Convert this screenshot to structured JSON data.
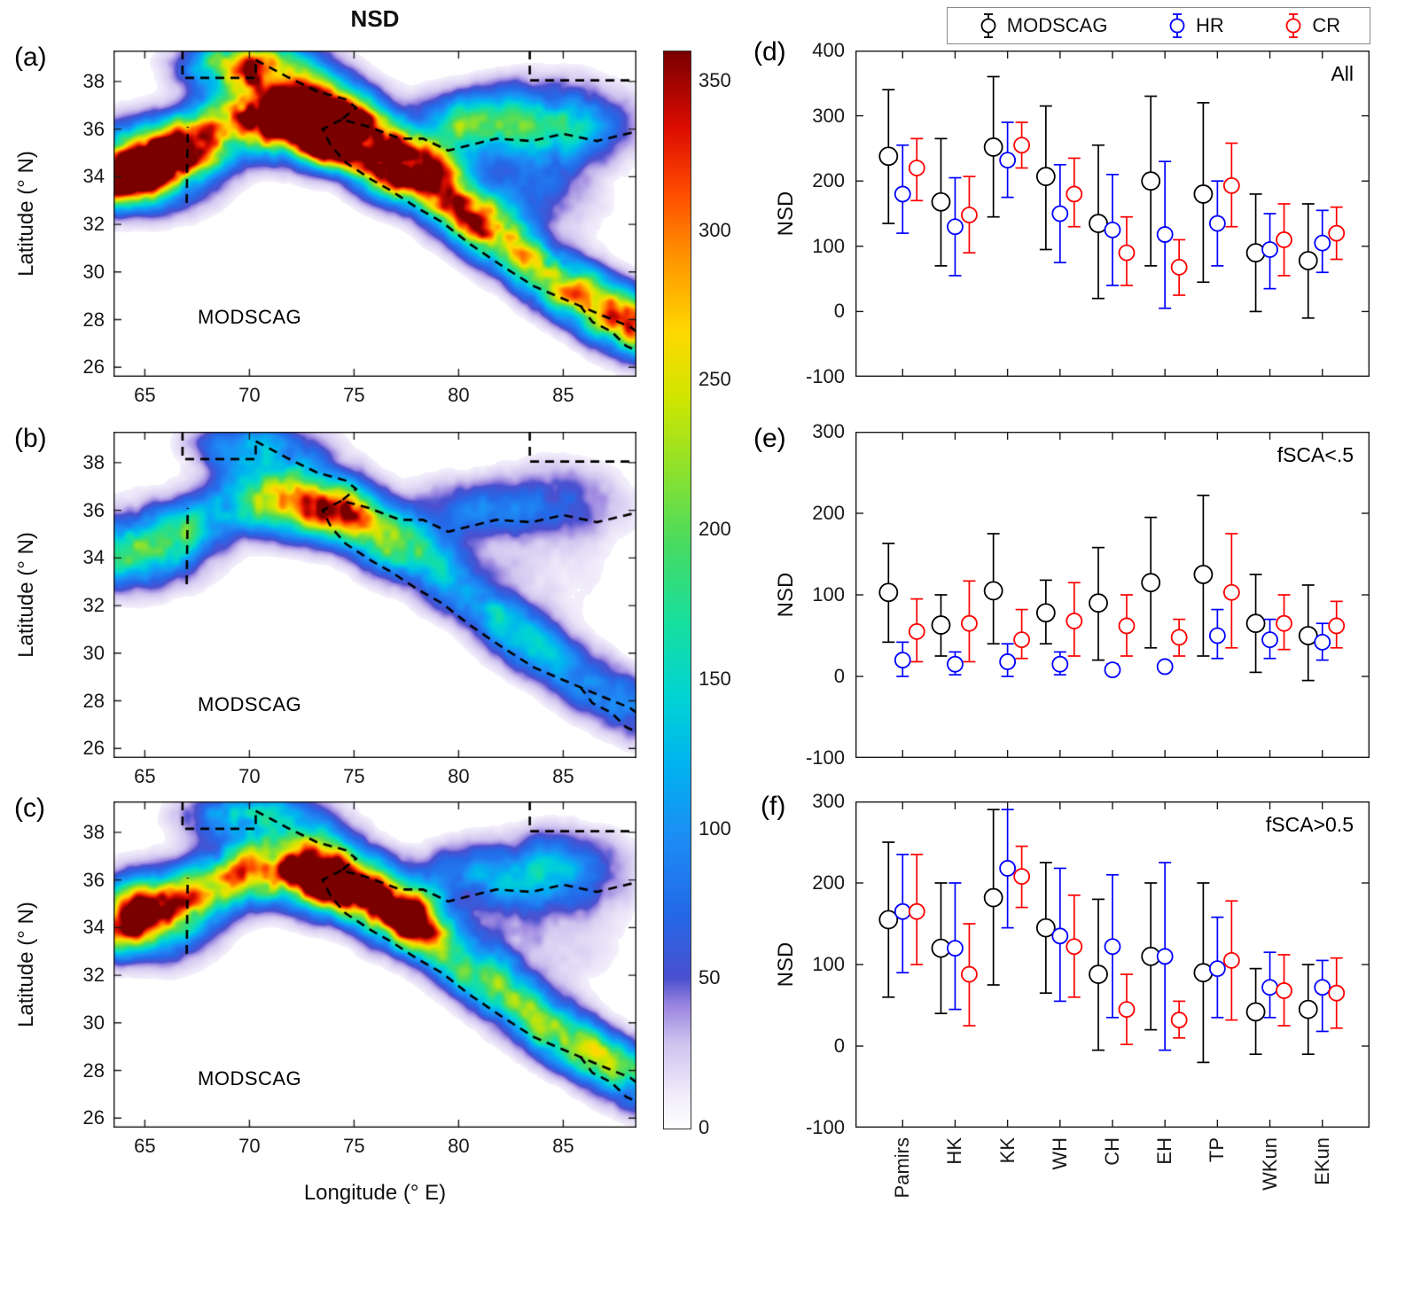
{
  "figure": {
    "title": "NSD",
    "maps": {
      "xlabel": "Longitude (° E)",
      "ylabel": "Latitude (° N)",
      "xlim": [
        63.5,
        88.5
      ],
      "ylim": [
        25.6,
        39.3
      ],
      "xticks": [
        65,
        70,
        75,
        80,
        85
      ],
      "yticks": [
        26,
        28,
        30,
        32,
        34,
        36,
        38
      ],
      "panels": [
        {
          "label": "(a)",
          "annotation": "MODSCAG",
          "intensity": 1.0,
          "seed": 11
        },
        {
          "label": "(b)",
          "annotation": "MODSCAG",
          "intensity": 0.4,
          "seed": 23
        },
        {
          "label": "(c)",
          "annotation": "MODSCAG",
          "intensity": 0.68,
          "seed": 37
        }
      ],
      "boundaries": [
        [
          [
            66.8,
            39.3
          ],
          [
            66.8,
            38.15
          ],
          [
            70.3,
            38.15
          ],
          [
            70.3,
            38.9
          ]
        ],
        [
          [
            83.4,
            39.3
          ],
          [
            83.4,
            38.05
          ],
          [
            88.5,
            38.05
          ]
        ],
        [
          [
            67.0,
            32.9
          ],
          [
            67.05,
            36.1
          ]
        ],
        [
          [
            70.3,
            38.9
          ],
          [
            71.8,
            38.2
          ],
          [
            73.2,
            37.6
          ],
          [
            74.6,
            37.25
          ],
          [
            75.1,
            36.9
          ],
          [
            74.4,
            36.4
          ],
          [
            75.7,
            36.1
          ],
          [
            77.2,
            35.6
          ],
          [
            78.3,
            35.6
          ],
          [
            79.5,
            35.1
          ],
          [
            80.4,
            35.3
          ],
          [
            81.8,
            35.6
          ],
          [
            83.5,
            35.5
          ],
          [
            85.0,
            35.8
          ],
          [
            86.6,
            35.5
          ],
          [
            88.5,
            35.9
          ]
        ],
        [
          [
            74.4,
            36.4
          ],
          [
            73.5,
            36.0
          ],
          [
            73.9,
            35.3
          ],
          [
            74.6,
            34.6
          ],
          [
            75.8,
            33.9
          ],
          [
            76.8,
            33.4
          ],
          [
            78.0,
            32.7
          ],
          [
            79.2,
            32.1
          ],
          [
            80.5,
            31.2
          ],
          [
            82.0,
            30.3
          ],
          [
            83.6,
            29.4
          ],
          [
            85.2,
            28.8
          ],
          [
            86.8,
            28.2
          ],
          [
            88.2,
            27.7
          ],
          [
            88.5,
            27.5
          ]
        ],
        [
          [
            85.8,
            28.6
          ],
          [
            86.4,
            27.9
          ],
          [
            87.3,
            27.5
          ],
          [
            88.0,
            26.9
          ],
          [
            88.5,
            26.7
          ]
        ]
      ]
    },
    "colorbar": {
      "min": 0,
      "max": 360,
      "ticks": [
        0,
        50,
        100,
        150,
        200,
        250,
        300,
        350
      ],
      "stops": [
        {
          "t": 0.0,
          "c": "#ffffff"
        },
        {
          "t": 0.03,
          "c": "#f2eefb"
        },
        {
          "t": 0.08,
          "c": "#cfc3ef"
        },
        {
          "t": 0.115,
          "c": "#9a86e0"
        },
        {
          "t": 0.14,
          "c": "#4b50cf"
        },
        {
          "t": 0.2,
          "c": "#2469e8"
        },
        {
          "t": 0.27,
          "c": "#1d8df5"
        },
        {
          "t": 0.34,
          "c": "#00b4f0"
        },
        {
          "t": 0.4,
          "c": "#00d4d4"
        },
        {
          "t": 0.47,
          "c": "#18e0a0"
        },
        {
          "t": 0.54,
          "c": "#46db64"
        },
        {
          "t": 0.61,
          "c": "#8ce22e"
        },
        {
          "t": 0.68,
          "c": "#d2e600"
        },
        {
          "t": 0.74,
          "c": "#ffd900"
        },
        {
          "t": 0.81,
          "c": "#ff9400"
        },
        {
          "t": 0.87,
          "c": "#ff4c00"
        },
        {
          "t": 0.93,
          "c": "#dd0c00"
        },
        {
          "t": 1.0,
          "c": "#7a0000"
        }
      ]
    },
    "legend": {
      "items": [
        {
          "label": "MODSCAG",
          "color": "#000000"
        },
        {
          "label": "HR",
          "color": "#0000ff"
        },
        {
          "label": "CR",
          "color": "#ff0000"
        }
      ]
    }
  },
  "chart_data": [
    {
      "type": "errorbar",
      "panel": "(d)",
      "annotation": "All",
      "ylabel": "NSD",
      "ylim": [
        -100,
        400
      ],
      "yticks": [
        -100,
        0,
        100,
        200,
        300,
        400
      ],
      "categories": [
        "Pamirs",
        "HK",
        "KK",
        "WH",
        "CH",
        "EH",
        "TP",
        "WKun",
        "EKun"
      ],
      "series": [
        {
          "name": "MODSCAG",
          "color": "#000000",
          "mean": [
            238,
            168,
            252,
            207,
            135,
            200,
            180,
            90,
            78
          ],
          "lo": [
            135,
            70,
            145,
            95,
            20,
            70,
            45,
            0,
            -10
          ],
          "hi": [
            340,
            265,
            360,
            315,
            255,
            330,
            320,
            180,
            165
          ]
        },
        {
          "name": "HR",
          "color": "#0000ff",
          "mean": [
            180,
            130,
            232,
            150,
            125,
            118,
            135,
            95,
            105
          ],
          "lo": [
            120,
            55,
            175,
            75,
            40,
            5,
            70,
            35,
            60
          ],
          "hi": [
            255,
            205,
            290,
            225,
            210,
            230,
            200,
            150,
            155
          ]
        },
        {
          "name": "CR",
          "color": "#ff0000",
          "mean": [
            220,
            148,
            255,
            180,
            90,
            68,
            193,
            110,
            120
          ],
          "lo": [
            170,
            90,
            220,
            130,
            40,
            25,
            130,
            55,
            80
          ],
          "hi": [
            265,
            207,
            290,
            235,
            145,
            110,
            258,
            165,
            160
          ]
        }
      ]
    },
    {
      "type": "errorbar",
      "panel": "(e)",
      "annotation": "fSCA<.5",
      "ylabel": "NSD",
      "ylim": [
        -100,
        300
      ],
      "yticks": [
        -100,
        0,
        100,
        200,
        300
      ],
      "categories": [
        "Pamirs",
        "HK",
        "KK",
        "WH",
        "CH",
        "EH",
        "TP",
        "WKun",
        "EKun"
      ],
      "series": [
        {
          "name": "MODSCAG",
          "color": "#000000",
          "mean": [
            103,
            63,
            105,
            78,
            90,
            115,
            125,
            65,
            50
          ],
          "lo": [
            42,
            25,
            40,
            40,
            20,
            35,
            25,
            5,
            -5
          ],
          "hi": [
            163,
            100,
            175,
            118,
            158,
            195,
            222,
            125,
            112
          ]
        },
        {
          "name": "HR",
          "color": "#0000ff",
          "mean": [
            20,
            15,
            18,
            15,
            8,
            12,
            50,
            45,
            42
          ],
          "lo": [
            0,
            2,
            0,
            2,
            2,
            6,
            22,
            22,
            20
          ],
          "hi": [
            42,
            30,
            40,
            30,
            15,
            18,
            82,
            70,
            65
          ]
        },
        {
          "name": "CR",
          "color": "#ff0000",
          "mean": [
            55,
            65,
            45,
            68,
            62,
            48,
            103,
            65,
            62
          ],
          "lo": [
            18,
            18,
            22,
            25,
            25,
            25,
            35,
            33,
            35
          ],
          "hi": [
            95,
            117,
            82,
            115,
            100,
            70,
            175,
            100,
            92
          ]
        }
      ]
    },
    {
      "type": "errorbar",
      "panel": "(f)",
      "annotation": "fSCA>0.5",
      "ylabel": "NSD",
      "ylim": [
        -100,
        300
      ],
      "yticks": [
        -100,
        0,
        100,
        200,
        300
      ],
      "categories": [
        "Pamirs",
        "HK",
        "KK",
        "WH",
        "CH",
        "EH",
        "TP",
        "WKun",
        "EKun"
      ],
      "series": [
        {
          "name": "MODSCAG",
          "color": "#000000",
          "mean": [
            155,
            120,
            182,
            145,
            88,
            110,
            90,
            42,
            45
          ],
          "lo": [
            60,
            40,
            75,
            65,
            -5,
            20,
            -20,
            -10,
            -10
          ],
          "hi": [
            250,
            200,
            290,
            225,
            180,
            200,
            200,
            95,
            100
          ]
        },
        {
          "name": "HR",
          "color": "#0000ff",
          "mean": [
            165,
            120,
            218,
            135,
            122,
            110,
            95,
            72,
            72
          ],
          "lo": [
            90,
            45,
            145,
            55,
            35,
            -5,
            35,
            35,
            18
          ],
          "hi": [
            235,
            200,
            290,
            218,
            210,
            225,
            158,
            115,
            105
          ]
        },
        {
          "name": "CR",
          "color": "#ff0000",
          "mean": [
            165,
            88,
            208,
            122,
            45,
            32,
            105,
            68,
            65
          ],
          "lo": [
            100,
            25,
            170,
            60,
            2,
            10,
            32,
            25,
            22
          ],
          "hi": [
            235,
            150,
            245,
            185,
            88,
            55,
            178,
            112,
            108
          ]
        }
      ]
    }
  ]
}
